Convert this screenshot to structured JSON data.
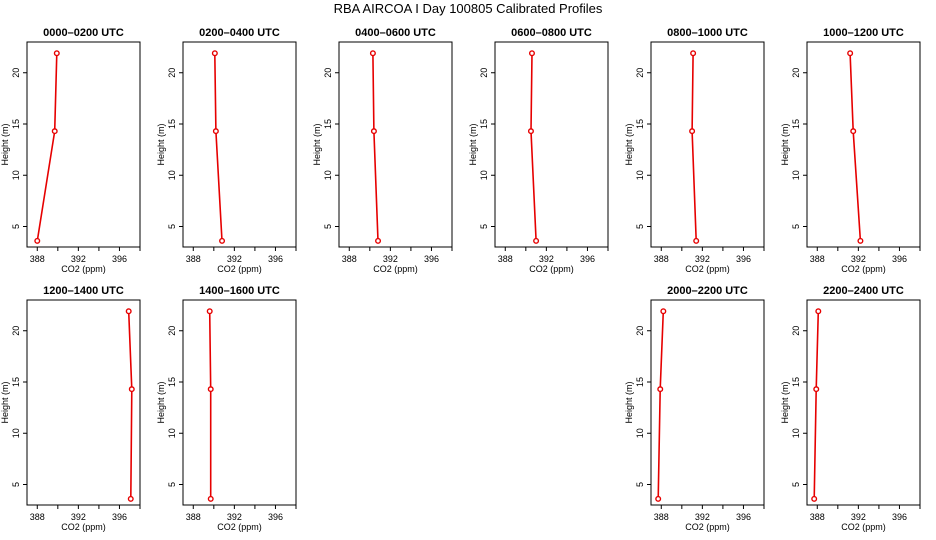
{
  "figure": {
    "title": "RBA AIRCOA I  Day 100805  Calibrated Profiles"
  },
  "chart_data": [
    {
      "type": "line",
      "title": "0000–0200 UTC",
      "xlabel": "CO2 (ppm)",
      "ylabel": "Height (m)",
      "xlim": [
        387,
        398
      ],
      "ylim": [
        3,
        23
      ],
      "xticks": [
        388,
        392,
        396
      ],
      "yticks": [
        5,
        10,
        15,
        20
      ],
      "series": [
        {
          "x": [
            388.0,
            389.7,
            389.9
          ],
          "y": [
            3.6,
            14.3,
            21.9
          ]
        }
      ]
    },
    {
      "type": "line",
      "title": "0200–0400 UTC",
      "xlabel": "CO2 (ppm)",
      "ylabel": "Height (m)",
      "xlim": [
        387,
        398
      ],
      "ylim": [
        3,
        23
      ],
      "xticks": [
        388,
        392,
        396
      ],
      "yticks": [
        5,
        10,
        15,
        20
      ],
      "series": [
        {
          "x": [
            390.8,
            390.2,
            390.1
          ],
          "y": [
            3.6,
            14.3,
            21.9
          ]
        }
      ]
    },
    {
      "type": "line",
      "title": "0400–0600 UTC",
      "xlabel": "CO2 (ppm)",
      "ylabel": "Height (m)",
      "xlim": [
        387,
        398
      ],
      "ylim": [
        3,
        23
      ],
      "xticks": [
        388,
        392,
        396
      ],
      "yticks": [
        5,
        10,
        15,
        20
      ],
      "series": [
        {
          "x": [
            390.8,
            390.4,
            390.3
          ],
          "y": [
            3.6,
            14.3,
            21.9
          ]
        }
      ]
    },
    {
      "type": "line",
      "title": "0600–0800 UTC",
      "xlabel": "CO2 (ppm)",
      "ylabel": "Height (m)",
      "xlim": [
        387,
        398
      ],
      "ylim": [
        3,
        23
      ],
      "xticks": [
        388,
        392,
        396
      ],
      "yticks": [
        5,
        10,
        15,
        20
      ],
      "series": [
        {
          "x": [
            391.0,
            390.5,
            390.6
          ],
          "y": [
            3.6,
            14.3,
            21.9
          ]
        }
      ]
    },
    {
      "type": "line",
      "title": "0800–1000 UTC",
      "xlabel": "CO2 (ppm)",
      "ylabel": "Height (m)",
      "xlim": [
        387,
        398
      ],
      "ylim": [
        3,
        23
      ],
      "xticks": [
        388,
        392,
        396
      ],
      "yticks": [
        5,
        10,
        15,
        20
      ],
      "series": [
        {
          "x": [
            391.4,
            391.0,
            391.1
          ],
          "y": [
            3.6,
            14.3,
            21.9
          ]
        }
      ]
    },
    {
      "type": "line",
      "title": "1000–1200 UTC",
      "xlabel": "CO2 (ppm)",
      "ylabel": "Height (m)",
      "xlim": [
        387,
        398
      ],
      "ylim": [
        3,
        23
      ],
      "xticks": [
        388,
        392,
        396
      ],
      "yticks": [
        5,
        10,
        15,
        20
      ],
      "series": [
        {
          "x": [
            392.2,
            391.5,
            391.2
          ],
          "y": [
            3.6,
            14.3,
            21.9
          ]
        }
      ]
    },
    {
      "type": "line",
      "title": "1200–1400 UTC",
      "xlabel": "CO2 (ppm)",
      "ylabel": "Height (m)",
      "xlim": [
        387,
        398
      ],
      "ylim": [
        3,
        23
      ],
      "xticks": [
        388,
        392,
        396
      ],
      "yticks": [
        5,
        10,
        15,
        20
      ],
      "series": [
        {
          "x": [
            397.1,
            397.2,
            396.9
          ],
          "y": [
            3.6,
            14.3,
            21.9
          ]
        }
      ]
    },
    {
      "type": "line",
      "title": "1400–1600 UTC",
      "xlabel": "CO2 (ppm)",
      "ylabel": "Height (m)",
      "xlim": [
        387,
        398
      ],
      "ylim": [
        3,
        23
      ],
      "xticks": [
        388,
        392,
        396
      ],
      "yticks": [
        5,
        10,
        15,
        20
      ],
      "series": [
        {
          "x": [
            389.7,
            389.7,
            389.6
          ],
          "y": [
            3.6,
            14.3,
            21.9
          ]
        }
      ]
    },
    null,
    null,
    {
      "type": "line",
      "title": "2000–2200 UTC",
      "xlabel": "CO2 (ppm)",
      "ylabel": "Height (m)",
      "xlim": [
        387,
        398
      ],
      "ylim": [
        3,
        23
      ],
      "xticks": [
        388,
        392,
        396
      ],
      "yticks": [
        5,
        10,
        15,
        20
      ],
      "series": [
        {
          "x": [
            387.7,
            387.9,
            388.2
          ],
          "y": [
            3.6,
            14.3,
            21.9
          ]
        }
      ]
    },
    {
      "type": "line",
      "title": "2200–2400 UTC",
      "xlabel": "CO2 (ppm)",
      "ylabel": "Height (m)",
      "xlim": [
        387,
        398
      ],
      "ylim": [
        3,
        23
      ],
      "xticks": [
        388,
        392,
        396
      ],
      "yticks": [
        5,
        10,
        15,
        20
      ],
      "series": [
        {
          "x": [
            387.7,
            387.9,
            388.1
          ],
          "y": [
            3.6,
            14.3,
            21.9
          ]
        }
      ]
    }
  ]
}
